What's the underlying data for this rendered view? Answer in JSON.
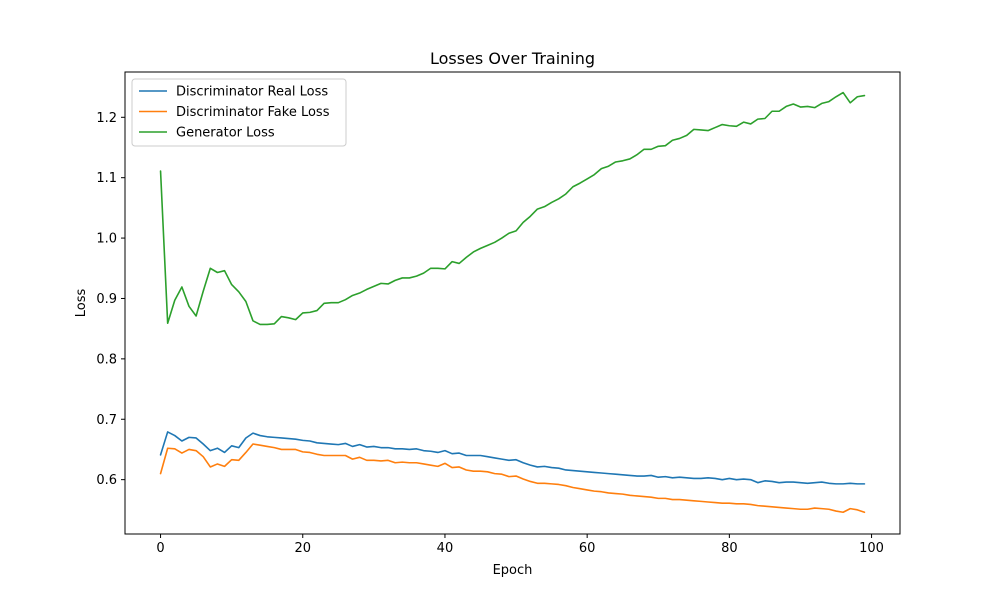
{
  "chart_data": {
    "type": "line",
    "title": "Losses Over Training",
    "xlabel": "Epoch",
    "ylabel": "Loss",
    "xlim": [
      -5,
      104
    ],
    "ylim": [
      0.51,
      1.275
    ],
    "xticks": [
      0,
      20,
      40,
      60,
      80,
      100
    ],
    "yticks": [
      0.6,
      0.7,
      0.8,
      0.9,
      1.0,
      1.1,
      1.2
    ],
    "ytick_labels": [
      "0.6",
      "0.7",
      "0.8",
      "0.9",
      "1.0",
      "1.1",
      "1.2"
    ],
    "grid": false,
    "legend_position": "top-left",
    "series": [
      {
        "name": "Discriminator Real Loss",
        "color": "#1f77b4",
        "values": [
          0.641,
          0.679,
          0.673,
          0.664,
          0.67,
          0.669,
          0.659,
          0.648,
          0.652,
          0.645,
          0.656,
          0.653,
          0.669,
          0.677,
          0.673,
          0.671,
          0.67,
          0.669,
          0.668,
          0.667,
          0.665,
          0.664,
          0.661,
          0.66,
          0.659,
          0.658,
          0.66,
          0.655,
          0.658,
          0.654,
          0.655,
          0.653,
          0.653,
          0.651,
          0.651,
          0.65,
          0.651,
          0.648,
          0.647,
          0.645,
          0.648,
          0.643,
          0.644,
          0.64,
          0.64,
          0.64,
          0.638,
          0.636,
          0.634,
          0.632,
          0.633,
          0.628,
          0.624,
          0.621,
          0.622,
          0.62,
          0.619,
          0.616,
          0.615,
          0.614,
          0.613,
          0.612,
          0.611,
          0.61,
          0.609,
          0.608,
          0.607,
          0.606,
          0.606,
          0.607,
          0.604,
          0.605,
          0.603,
          0.604,
          0.603,
          0.602,
          0.602,
          0.603,
          0.602,
          0.6,
          0.602,
          0.6,
          0.601,
          0.6,
          0.595,
          0.598,
          0.597,
          0.595,
          0.596,
          0.596,
          0.595,
          0.594,
          0.595,
          0.596,
          0.594,
          0.593,
          0.593,
          0.594,
          0.593,
          0.593
        ]
      },
      {
        "name": "Discriminator Fake Loss",
        "color": "#ff7f0e",
        "values": [
          0.61,
          0.652,
          0.651,
          0.644,
          0.65,
          0.648,
          0.638,
          0.621,
          0.626,
          0.622,
          0.633,
          0.632,
          0.645,
          0.659,
          0.657,
          0.655,
          0.653,
          0.65,
          0.65,
          0.65,
          0.646,
          0.645,
          0.642,
          0.64,
          0.64,
          0.64,
          0.64,
          0.634,
          0.637,
          0.632,
          0.632,
          0.631,
          0.632,
          0.628,
          0.629,
          0.628,
          0.628,
          0.626,
          0.624,
          0.622,
          0.627,
          0.62,
          0.621,
          0.616,
          0.614,
          0.614,
          0.613,
          0.61,
          0.609,
          0.605,
          0.606,
          0.601,
          0.597,
          0.594,
          0.594,
          0.593,
          0.592,
          0.59,
          0.587,
          0.585,
          0.583,
          0.581,
          0.58,
          0.578,
          0.577,
          0.576,
          0.574,
          0.573,
          0.572,
          0.571,
          0.569,
          0.569,
          0.567,
          0.567,
          0.566,
          0.565,
          0.564,
          0.563,
          0.562,
          0.561,
          0.561,
          0.56,
          0.56,
          0.559,
          0.557,
          0.556,
          0.555,
          0.554,
          0.553,
          0.552,
          0.551,
          0.551,
          0.553,
          0.552,
          0.551,
          0.548,
          0.546,
          0.552,
          0.55,
          0.546
        ]
      },
      {
        "name": "Generator Loss",
        "color": "#2ca02c",
        "values": [
          1.111,
          0.859,
          0.897,
          0.919,
          0.887,
          0.871,
          0.912,
          0.95,
          0.943,
          0.946,
          0.923,
          0.911,
          0.895,
          0.863,
          0.857,
          0.857,
          0.858,
          0.87,
          0.868,
          0.865,
          0.876,
          0.877,
          0.88,
          0.892,
          0.893,
          0.893,
          0.898,
          0.905,
          0.909,
          0.915,
          0.92,
          0.925,
          0.924,
          0.93,
          0.934,
          0.934,
          0.937,
          0.942,
          0.95,
          0.95,
          0.949,
          0.961,
          0.958,
          0.968,
          0.977,
          0.983,
          0.988,
          0.993,
          1.0,
          1.008,
          1.012,
          1.026,
          1.036,
          1.048,
          1.052,
          1.059,
          1.065,
          1.073,
          1.085,
          1.091,
          1.098,
          1.105,
          1.115,
          1.119,
          1.126,
          1.128,
          1.131,
          1.138,
          1.147,
          1.147,
          1.152,
          1.153,
          1.162,
          1.165,
          1.17,
          1.18,
          1.179,
          1.178,
          1.183,
          1.188,
          1.186,
          1.185,
          1.192,
          1.189,
          1.197,
          1.198,
          1.21,
          1.21,
          1.218,
          1.222,
          1.217,
          1.218,
          1.216,
          1.223,
          1.226,
          1.234,
          1.241,
          1.224,
          1.234,
          1.236
        ]
      }
    ]
  }
}
